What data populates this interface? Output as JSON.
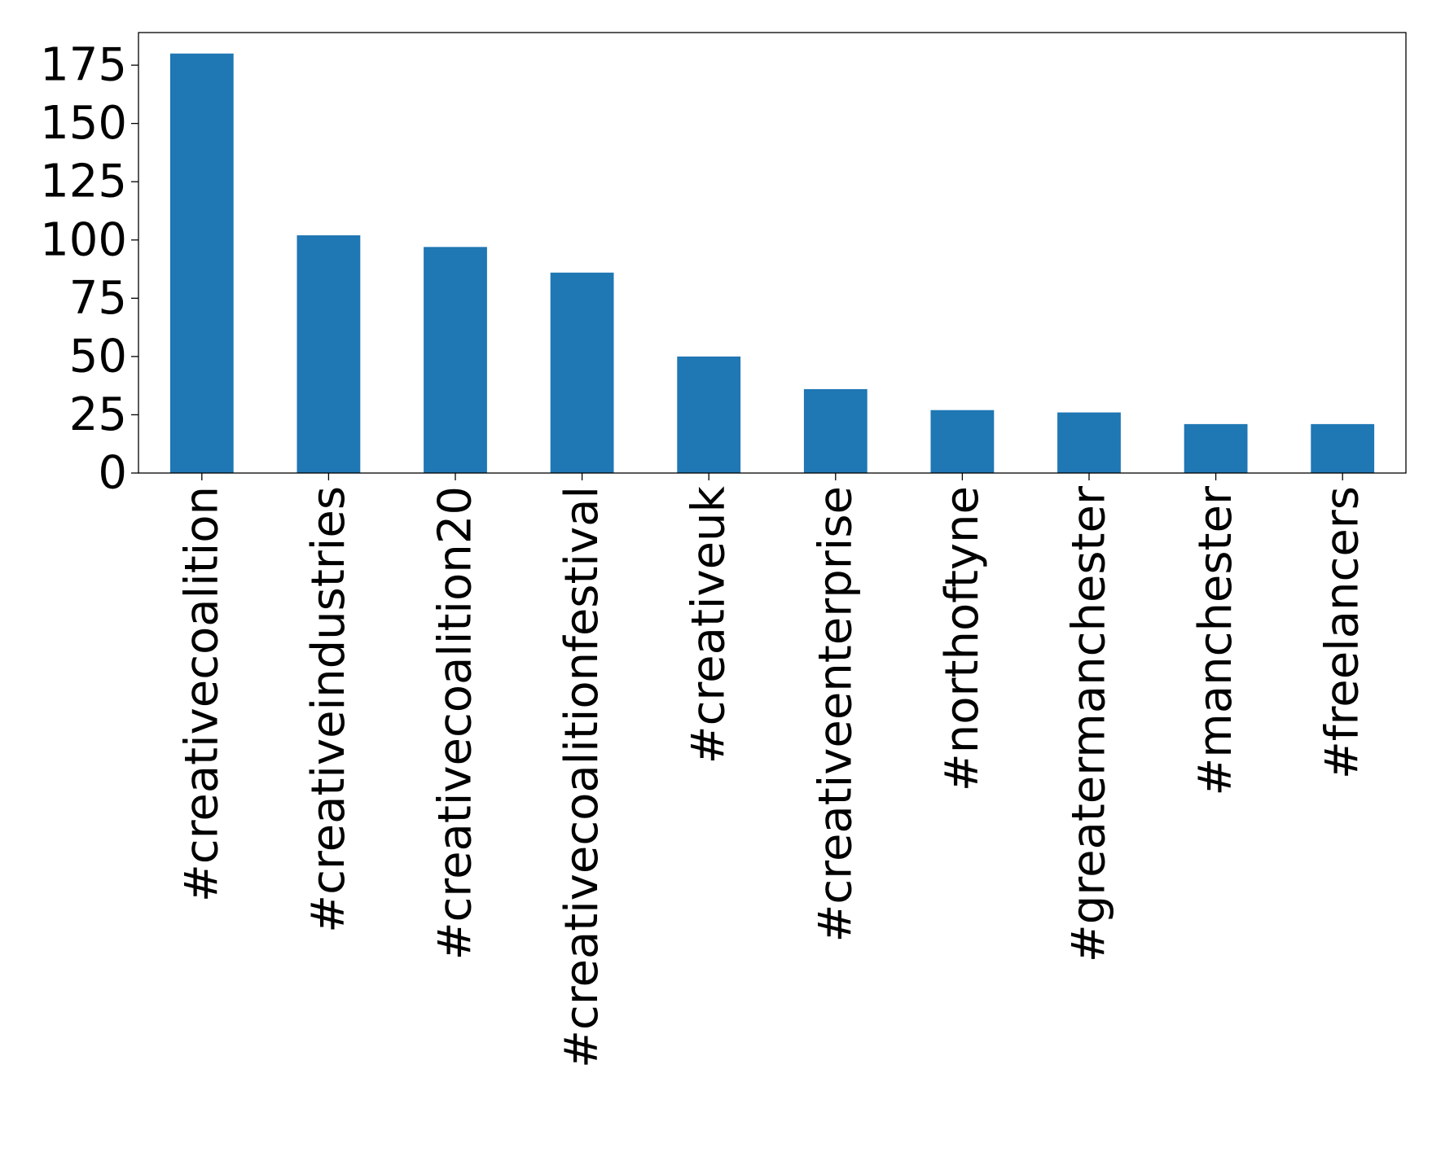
{
  "chart_data": {
    "type": "bar",
    "title": "",
    "xlabel": "",
    "ylabel": "",
    "categories": [
      "#creativecoalition",
      "#creativeindustries",
      "#creativecoalition20",
      "#creativecoalitionfestival",
      "#creativeuk",
      "#creativeenterprise",
      "#northoftyne",
      "#greatermanchester",
      "#manchester",
      "#freelancers"
    ],
    "values": [
      180,
      102,
      97,
      86,
      50,
      36,
      27,
      26,
      21,
      21
    ],
    "ylim": [
      0,
      189
    ],
    "yticks": [
      0,
      25,
      50,
      75,
      100,
      125,
      150,
      175
    ],
    "ytick_labels": [
      "0",
      "25",
      "50",
      "75",
      "100",
      "125",
      "150",
      "175"
    ],
    "bar_color": "#1f77b4",
    "grid": false,
    "legend": "none"
  }
}
